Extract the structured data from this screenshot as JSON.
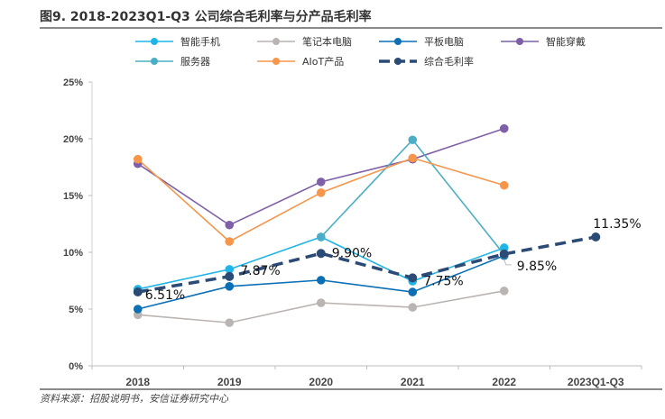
{
  "title": "图9. 2018-2023Q1-Q3 公司综合毛利率与分产品毛利率",
  "source": "资料来源：招股说明书，安信证券研究中心",
  "chart_data": {
    "type": "line",
    "title": "图9. 2018-2023Q1-Q3 公司综合毛利率与分产品毛利率",
    "xlabel": "",
    "ylabel": "",
    "categories": [
      "2018",
      "2019",
      "2020",
      "2021",
      "2022",
      "2023Q1-Q3"
    ],
    "ylim": [
      0,
      25
    ],
    "yticks": [
      "0%",
      "5%",
      "10%",
      "15%",
      "20%",
      "25%"
    ],
    "grid": false,
    "legend_position": "top",
    "series": [
      {
        "name": "智能手机",
        "color": "#1fb5e8",
        "dashed": false,
        "values": [
          6.75,
          8.5,
          11.35,
          7.45,
          10.4,
          null
        ]
      },
      {
        "name": "笔记本电脑",
        "color": "#bab4b2",
        "dashed": false,
        "values": [
          4.5,
          3.8,
          5.55,
          5.15,
          6.6,
          null
        ]
      },
      {
        "name": "平板电脑",
        "color": "#0a6fb5",
        "dashed": false,
        "values": [
          5.0,
          7.0,
          7.55,
          6.5,
          9.7,
          null
        ]
      },
      {
        "name": "智能穿戴",
        "color": "#7e5fa8",
        "dashed": false,
        "values": [
          17.8,
          12.4,
          16.2,
          18.2,
          20.9,
          null
        ]
      },
      {
        "name": "服务器",
        "color": "#4aaec6",
        "dashed": false,
        "values": [
          null,
          null,
          11.35,
          19.9,
          9.8,
          null
        ]
      },
      {
        "name": "AIoT产品",
        "color": "#f7954a",
        "dashed": false,
        "values": [
          18.2,
          10.95,
          15.25,
          18.3,
          15.9,
          null
        ]
      },
      {
        "name": "综合毛利率",
        "color": "#2b4a75",
        "dashed": true,
        "values": [
          6.51,
          7.87,
          9.9,
          7.75,
          9.85,
          11.35
        ],
        "labels": [
          "6.51%",
          "7.87%",
          "9.90%",
          "7.75%",
          "9.85%",
          "11.35%"
        ]
      }
    ]
  }
}
